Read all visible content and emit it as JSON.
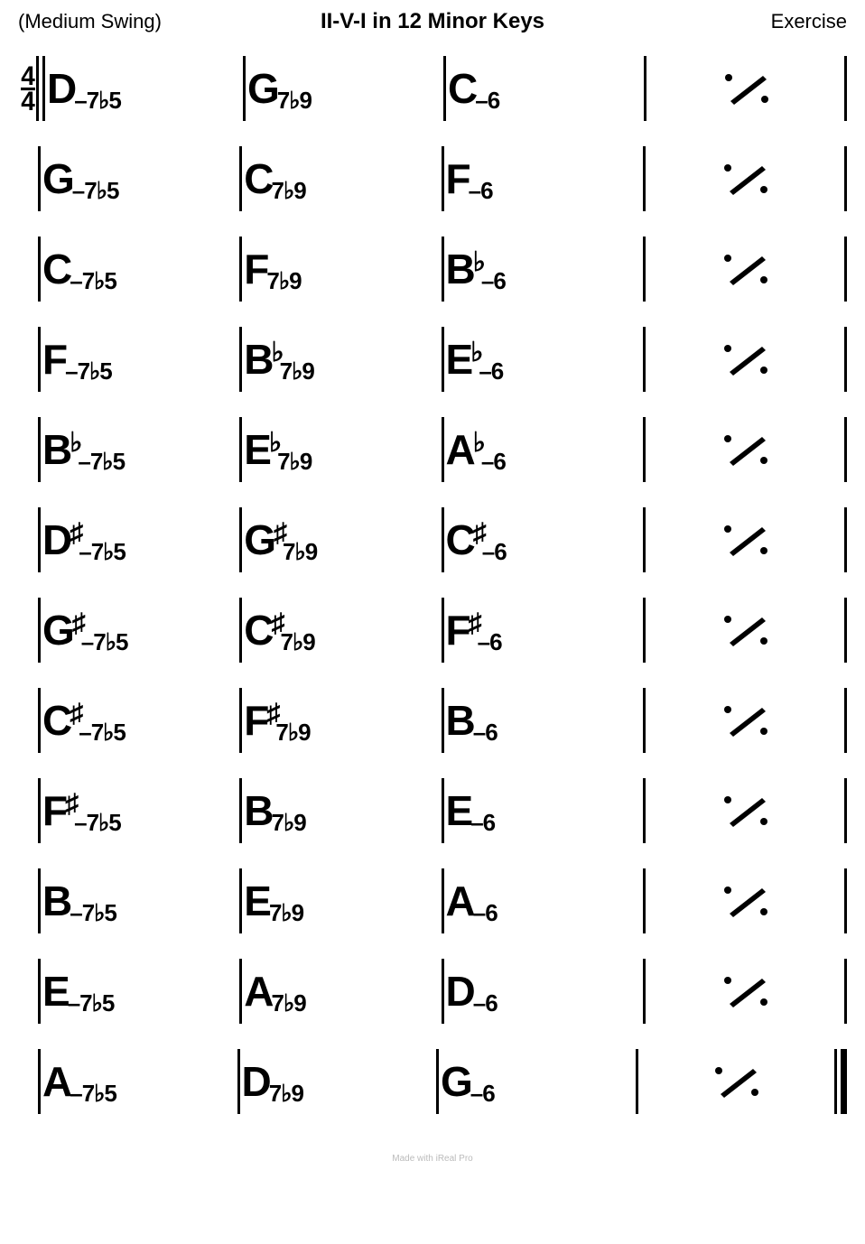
{
  "colors": {
    "text": "#000000",
    "background": "#ffffff",
    "footer": "#bbbbbb"
  },
  "title": "II-V-I in 12 Minor Keys",
  "style_label": "(Medium Swing)",
  "composer": "Exercise",
  "time_signature": {
    "numerator": "4",
    "denominator": "4"
  },
  "footer": "Made with iReal Pro",
  "quality_labels": {
    "ii": "–7♭5",
    "V": "7♭9",
    "i": "–6"
  },
  "rows": [
    {
      "open": "double",
      "close": "single",
      "chords": [
        {
          "root": "D",
          "acc": "",
          "qual": "ii"
        },
        {
          "root": "G",
          "acc": "",
          "qual": "V"
        },
        {
          "root": "C",
          "acc": "",
          "qual": "i"
        },
        {
          "repeat": true
        }
      ]
    },
    {
      "open": "single",
      "close": "single",
      "chords": [
        {
          "root": "G",
          "acc": "",
          "qual": "ii"
        },
        {
          "root": "C",
          "acc": "",
          "qual": "V"
        },
        {
          "root": "F",
          "acc": "",
          "qual": "i"
        },
        {
          "repeat": true
        }
      ]
    },
    {
      "open": "single",
      "close": "single",
      "chords": [
        {
          "root": "C",
          "acc": "",
          "qual": "ii"
        },
        {
          "root": "F",
          "acc": "",
          "qual": "V"
        },
        {
          "root": "B",
          "acc": "♭",
          "qual": "i"
        },
        {
          "repeat": true
        }
      ]
    },
    {
      "open": "single",
      "close": "single",
      "chords": [
        {
          "root": "F",
          "acc": "",
          "qual": "ii"
        },
        {
          "root": "B",
          "acc": "♭",
          "qual": "V"
        },
        {
          "root": "E",
          "acc": "♭",
          "qual": "i"
        },
        {
          "repeat": true
        }
      ]
    },
    {
      "open": "single",
      "close": "single",
      "chords": [
        {
          "root": "B",
          "acc": "♭",
          "qual": "ii"
        },
        {
          "root": "E",
          "acc": "♭",
          "qual": "V"
        },
        {
          "root": "A",
          "acc": "♭",
          "qual": "i"
        },
        {
          "repeat": true
        }
      ]
    },
    {
      "open": "single",
      "close": "single",
      "chords": [
        {
          "root": "D",
          "acc": "♯",
          "qual": "ii"
        },
        {
          "root": "G",
          "acc": "♯",
          "qual": "V"
        },
        {
          "root": "C",
          "acc": "♯",
          "qual": "i"
        },
        {
          "repeat": true
        }
      ]
    },
    {
      "open": "single",
      "close": "single",
      "chords": [
        {
          "root": "G",
          "acc": "♯",
          "qual": "ii"
        },
        {
          "root": "C",
          "acc": "♯",
          "qual": "V"
        },
        {
          "root": "F",
          "acc": "♯",
          "qual": "i"
        },
        {
          "repeat": true
        }
      ]
    },
    {
      "open": "single",
      "close": "single",
      "chords": [
        {
          "root": "C",
          "acc": "♯",
          "qual": "ii"
        },
        {
          "root": "F",
          "acc": "♯",
          "qual": "V"
        },
        {
          "root": "B",
          "acc": "",
          "qual": "i"
        },
        {
          "repeat": true
        }
      ]
    },
    {
      "open": "single",
      "close": "single",
      "chords": [
        {
          "root": "F",
          "acc": "♯",
          "qual": "ii"
        },
        {
          "root": "B",
          "acc": "",
          "qual": "V"
        },
        {
          "root": "E",
          "acc": "",
          "qual": "i"
        },
        {
          "repeat": true
        }
      ]
    },
    {
      "open": "single",
      "close": "single",
      "chords": [
        {
          "root": "B",
          "acc": "",
          "qual": "ii"
        },
        {
          "root": "E",
          "acc": "",
          "qual": "V"
        },
        {
          "root": "A",
          "acc": "",
          "qual": "i"
        },
        {
          "repeat": true
        }
      ]
    },
    {
      "open": "single",
      "close": "single",
      "chords": [
        {
          "root": "E",
          "acc": "",
          "qual": "ii"
        },
        {
          "root": "A",
          "acc": "",
          "qual": "V"
        },
        {
          "root": "D",
          "acc": "",
          "qual": "i"
        },
        {
          "repeat": true
        }
      ]
    },
    {
      "open": "single",
      "close": "final",
      "chords": [
        {
          "root": "A",
          "acc": "",
          "qual": "ii"
        },
        {
          "root": "D",
          "acc": "",
          "qual": "V"
        },
        {
          "root": "G",
          "acc": "",
          "qual": "i"
        },
        {
          "repeat": true
        }
      ]
    }
  ]
}
